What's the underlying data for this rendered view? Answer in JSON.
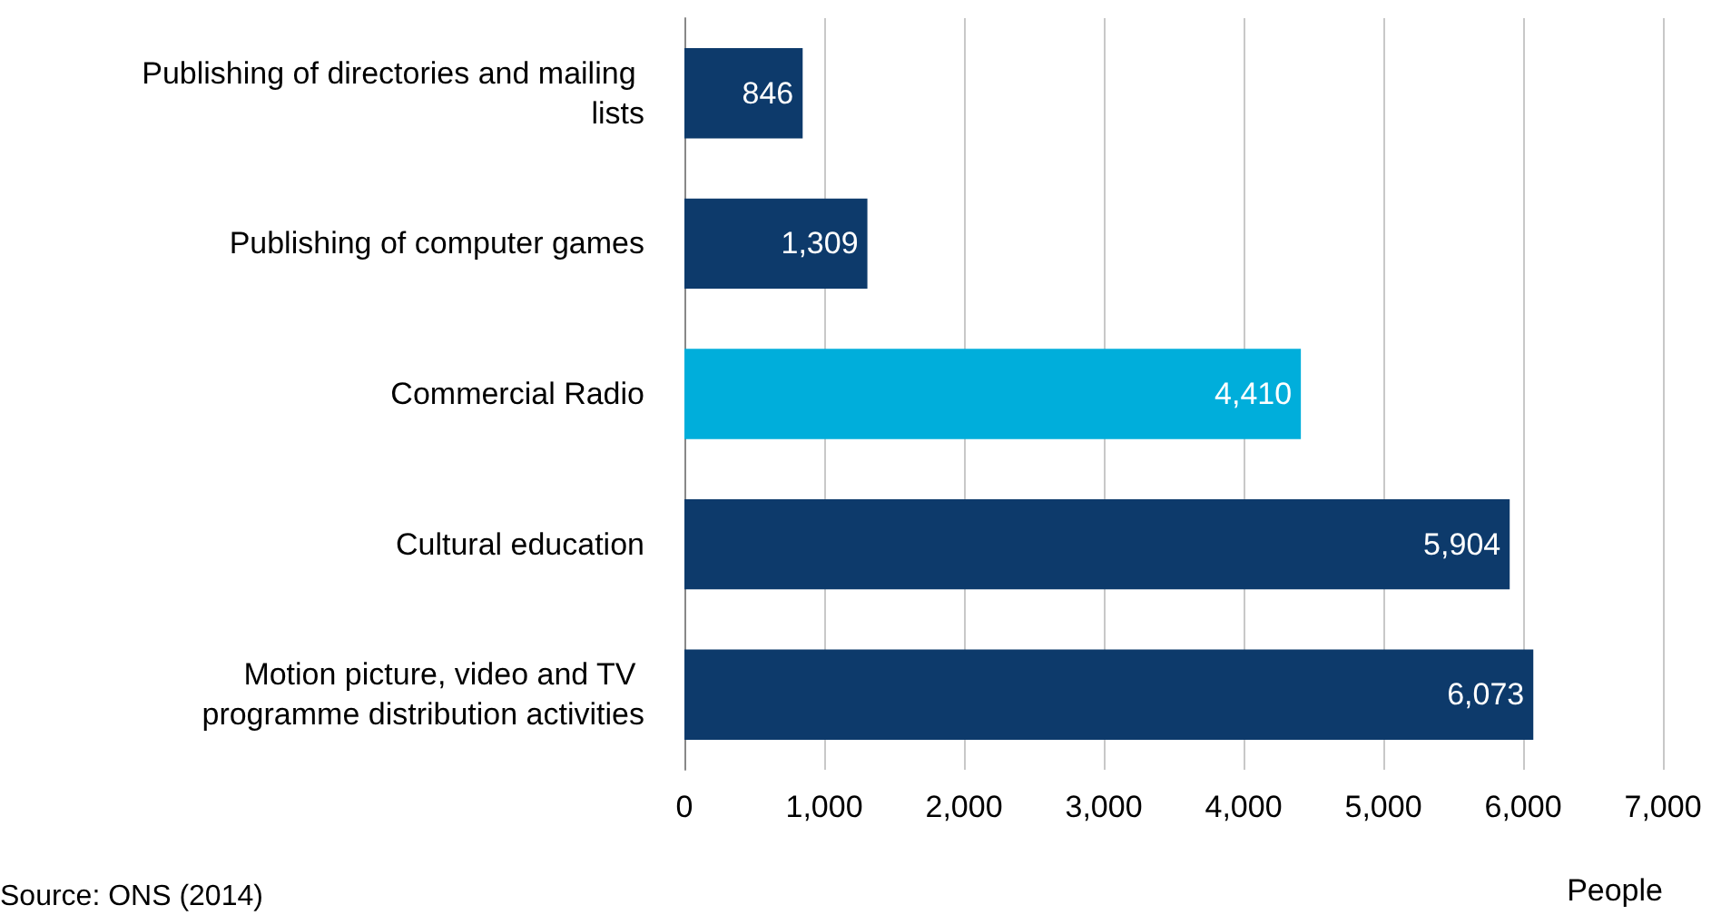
{
  "chart_data": {
    "type": "bar",
    "orientation": "horizontal",
    "categories": [
      "Publishing of directories and mailing lists",
      "Publishing of computer games",
      "Commercial Radio",
      "Cultural education",
      "Motion picture, video and TV programme distribution activities"
    ],
    "values": [
      846,
      1309,
      4410,
      5904,
      6073
    ],
    "colors": [
      "#0d3a6b",
      "#0d3a6b",
      "#00aedb",
      "#0d3a6b",
      "#0d3a6b"
    ],
    "value_labels": [
      "846",
      "1,309",
      "4,410",
      "5,904",
      "6,073"
    ],
    "xlim": [
      0,
      7000
    ],
    "xticks": [
      0,
      {
        "value": 1000,
        "label": "1,000"
      },
      {
        "value": 2000,
        "label": "2,000"
      },
      {
        "value": 3000,
        "label": "3,000"
      },
      {
        "value": 4000,
        "label": "4,000"
      },
      {
        "value": 5000,
        "label": "5,000"
      },
      {
        "value": 6000,
        "label": "6,000"
      },
      {
        "value": 7000,
        "label": "7,000"
      }
    ],
    "xlabel": "People",
    "grid": "x",
    "annotations": [
      "Source: ONS (2014)"
    ]
  }
}
